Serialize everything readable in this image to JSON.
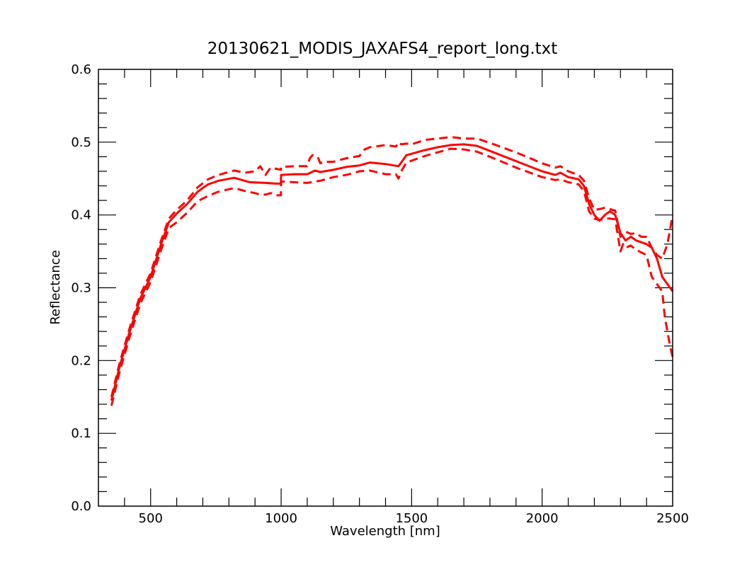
{
  "chart_data": {
    "type": "line",
    "title": "20130621_MODIS_JAXAFS4_report_long.txt",
    "xlabel": "Wavelength [nm]",
    "ylabel": "Reflectance",
    "xlim": [
      300,
      2500
    ],
    "ylim": [
      0.0,
      0.6
    ],
    "xticks": [
      500,
      1000,
      1500,
      2000,
      2500
    ],
    "xtick_labels": [
      "500",
      "1000",
      "1500",
      "2000",
      "2500"
    ],
    "yticks": [
      0.0,
      0.1,
      0.2,
      0.3,
      0.4,
      0.5,
      0.6
    ],
    "ytick_labels": [
      "0.0",
      "0.1",
      "0.2",
      "0.3",
      "0.4",
      "0.5",
      "0.6"
    ],
    "grid": false,
    "series_color": "#ff0000",
    "series": [
      {
        "style": "solid",
        "x": [
          350,
          380,
          420,
          460,
          500,
          540,
          570,
          600,
          640,
          680,
          720,
          760,
          820,
          880,
          940,
          980,
          999,
          1000,
          1050,
          1100,
          1130,
          1150,
          1200,
          1250,
          1300,
          1340,
          1400,
          1450,
          1460,
          1480,
          1550,
          1600,
          1650,
          1700,
          1750,
          1800,
          1900,
          2000,
          2050,
          2070,
          2100,
          2140,
          2160,
          2180,
          2200,
          2220,
          2240,
          2260,
          2280,
          2300,
          2320,
          2340,
          2360,
          2400,
          2420,
          2440,
          2460,
          2480,
          2500
        ],
        "y": [
          0.145,
          0.19,
          0.24,
          0.285,
          0.315,
          0.36,
          0.39,
          0.402,
          0.415,
          0.432,
          0.442,
          0.447,
          0.451,
          0.445,
          0.444,
          0.443,
          0.443,
          0.455,
          0.456,
          0.456,
          0.461,
          0.459,
          0.462,
          0.466,
          0.468,
          0.472,
          0.47,
          0.467,
          0.472,
          0.482,
          0.489,
          0.493,
          0.496,
          0.497,
          0.495,
          0.488,
          0.474,
          0.46,
          0.455,
          0.458,
          0.452,
          0.449,
          0.44,
          0.415,
          0.4,
          0.392,
          0.4,
          0.405,
          0.4,
          0.375,
          0.365,
          0.37,
          0.365,
          0.36,
          0.355,
          0.34,
          0.315,
          0.305,
          0.295
        ]
      },
      {
        "style": "dashed",
        "x": [
          350,
          380,
          420,
          460,
          500,
          540,
          570,
          600,
          640,
          680,
          720,
          760,
          820,
          860,
          900,
          920,
          940,
          960,
          999,
          1000,
          1050,
          1100,
          1110,
          1120,
          1140,
          1150,
          1160,
          1200,
          1250,
          1300,
          1320,
          1340,
          1400,
          1440,
          1450,
          1460,
          1480,
          1500,
          1550,
          1600,
          1650,
          1700,
          1750,
          1800,
          1900,
          2000,
          2050,
          2070,
          2100,
          2140,
          2160,
          2180,
          2200,
          2220,
          2240,
          2260,
          2280,
          2300,
          2320,
          2340,
          2360,
          2380,
          2400,
          2420,
          2440,
          2460,
          2480,
          2500
        ],
        "y": [
          0.15,
          0.195,
          0.245,
          0.29,
          0.32,
          0.365,
          0.395,
          0.407,
          0.42,
          0.438,
          0.449,
          0.455,
          0.461,
          0.458,
          0.46,
          0.467,
          0.455,
          0.465,
          0.462,
          0.466,
          0.467,
          0.467,
          0.478,
          0.482,
          0.48,
          0.471,
          0.473,
          0.473,
          0.478,
          0.481,
          0.49,
          0.493,
          0.496,
          0.494,
          0.5,
          0.497,
          0.498,
          0.497,
          0.503,
          0.505,
          0.507,
          0.505,
          0.505,
          0.499,
          0.486,
          0.471,
          0.465,
          0.467,
          0.46,
          0.455,
          0.447,
          0.423,
          0.407,
          0.408,
          0.41,
          0.408,
          0.406,
          0.37,
          0.377,
          0.374,
          0.375,
          0.37,
          0.37,
          0.355,
          0.345,
          0.34,
          0.36,
          0.4
        ]
      },
      {
        "style": "dashed",
        "x": [
          350,
          380,
          420,
          460,
          500,
          540,
          570,
          600,
          640,
          680,
          720,
          760,
          820,
          860,
          900,
          920,
          940,
          960,
          980,
          999,
          1000,
          1050,
          1100,
          1150,
          1200,
          1250,
          1300,
          1340,
          1400,
          1440,
          1450,
          1460,
          1480,
          1550,
          1600,
          1650,
          1700,
          1750,
          1800,
          1900,
          2000,
          2050,
          2070,
          2100,
          2140,
          2160,
          2180,
          2200,
          2220,
          2240,
          2260,
          2280,
          2300,
          2310,
          2320,
          2340,
          2360,
          2400,
          2420,
          2440,
          2460,
          2470,
          2480,
          2490,
          2500
        ],
        "y": [
          0.138,
          0.183,
          0.233,
          0.278,
          0.308,
          0.352,
          0.382,
          0.39,
          0.403,
          0.419,
          0.426,
          0.432,
          0.437,
          0.433,
          0.43,
          0.428,
          0.428,
          0.43,
          0.427,
          0.427,
          0.446,
          0.445,
          0.444,
          0.447,
          0.452,
          0.455,
          0.46,
          0.461,
          0.456,
          0.456,
          0.45,
          0.46,
          0.472,
          0.481,
          0.486,
          0.491,
          0.49,
          0.487,
          0.48,
          0.465,
          0.452,
          0.448,
          0.449,
          0.445,
          0.442,
          0.433,
          0.405,
          0.395,
          0.393,
          0.395,
          0.395,
          0.394,
          0.35,
          0.36,
          0.355,
          0.358,
          0.352,
          0.345,
          0.315,
          0.305,
          0.295,
          0.26,
          0.24,
          0.22,
          0.205
        ]
      }
    ]
  }
}
